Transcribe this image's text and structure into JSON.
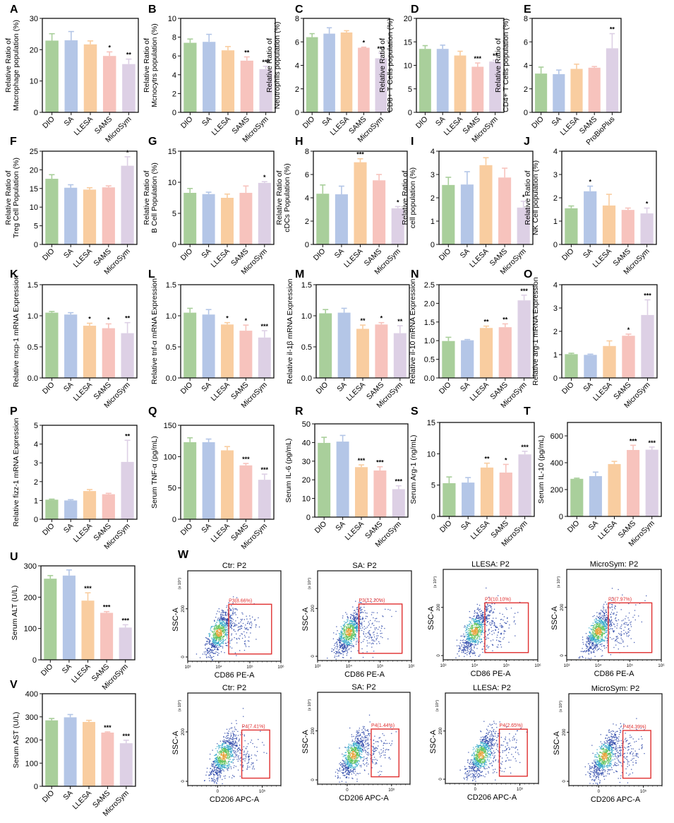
{
  "figure": {
    "colors": {
      "DIO": "#a9cf9b",
      "SA": "#b4c6e7",
      "LLESA": "#f9cda0",
      "SAMS": "#f7c3bd",
      "MicroSym": "#ddd0e5",
      "ProBioPlus": "#ddd0e5",
      "gate": "#e03030"
    }
  },
  "chart_data": [
    {
      "panel": "A",
      "type": "bar",
      "ylabel": [
        "Relative Ratio of",
        "Macrophage population (%)"
      ],
      "ylim": [
        0,
        30
      ],
      "yticks": [
        0,
        10,
        20,
        30
      ],
      "categories": [
        "DIO",
        "SA",
        "LLESA",
        "SAMS",
        "MicroSym"
      ],
      "values": [
        22.9,
        23.0,
        21.7,
        18.0,
        15.4
      ],
      "errors": [
        2.2,
        2.8,
        1.1,
        1.3,
        1.6
      ],
      "significance": [
        "",
        "",
        "",
        "*",
        "**"
      ]
    },
    {
      "panel": "B",
      "type": "bar",
      "ylabel": [
        "Relative Ratio of",
        "Mcnocytrs population (%)"
      ],
      "ylim": [
        0,
        10
      ],
      "yticks": [
        0,
        2,
        4,
        6,
        8,
        10
      ],
      "categories": [
        "DIO",
        "SA",
        "LLESA",
        "SAMS",
        "MicroSym"
      ],
      "values": [
        7.4,
        7.5,
        6.6,
        5.5,
        4.6
      ],
      "errors": [
        0.4,
        0.8,
        0.4,
        0.4,
        0.3
      ],
      "significance": [
        "",
        "",
        "",
        "**",
        "***"
      ]
    },
    {
      "panel": "C",
      "type": "bar",
      "ylabel": [
        "Relative Ratio of",
        "Neutrophils population (%)"
      ],
      "ylim": [
        0,
        8
      ],
      "yticks": [
        0,
        2,
        4,
        6,
        8
      ],
      "categories": [
        "DIO",
        "SA",
        "LLESA",
        "SAMS",
        "MicroSym"
      ],
      "values": [
        6.4,
        6.7,
        6.8,
        5.5,
        4.6
      ],
      "errors": [
        0.3,
        0.5,
        0.15,
        0.05,
        0.45
      ],
      "significance": [
        "",
        "",
        "",
        "*",
        "***"
      ]
    },
    {
      "panel": "D",
      "type": "bar",
      "ylabel": [
        "Relative Ratio of",
        "CD8+ T Cells population (%)"
      ],
      "ylim": [
        0,
        20
      ],
      "yticks": [
        0,
        5,
        10,
        15,
        20
      ],
      "categories": [
        "DIO",
        "SA",
        "LLESA",
        "SAMS",
        "MicroSym"
      ],
      "values": [
        13.5,
        13.5,
        12.1,
        9.7,
        10.8
      ],
      "errors": [
        0.7,
        0.8,
        0.9,
        0.8,
        0.3
      ],
      "significance": [
        "",
        "",
        "",
        "***",
        "**"
      ]
    },
    {
      "panel": "E",
      "type": "bar",
      "ylabel": [
        "Relative Ratio of",
        "CD4+ T Cells population (%)"
      ],
      "ylim": [
        0,
        8
      ],
      "yticks": [
        0,
        2,
        4,
        6,
        8
      ],
      "categories": [
        "DIO",
        "SA",
        "LLESA",
        "SAMS",
        "ProBioPlus"
      ],
      "values": [
        3.3,
        3.25,
        3.7,
        3.8,
        5.45
      ],
      "errors": [
        0.55,
        0.35,
        0.4,
        0.1,
        1.25
      ],
      "significance": [
        "",
        "",
        "",
        "",
        "**"
      ]
    },
    {
      "panel": "F",
      "type": "bar",
      "ylabel": [
        "Relative Ratio of",
        "Treg Cell Population (%)"
      ],
      "ylim": [
        0,
        25
      ],
      "yticks": [
        0,
        5,
        10,
        15,
        20,
        25
      ],
      "categories": [
        "DIO",
        "SA",
        "LLESA",
        "SAMS",
        "MicroSym"
      ],
      "values": [
        17.6,
        15.2,
        14.7,
        15.3,
        21.1
      ],
      "errors": [
        1.1,
        0.8,
        0.5,
        0.4,
        2.4
      ],
      "significance": [
        "",
        "",
        "",
        "",
        "*"
      ]
    },
    {
      "panel": "G",
      "type": "bar",
      "ylabel": [
        "Relative Ratio of",
        "B Cell Population (%)"
      ],
      "ylim": [
        0,
        15
      ],
      "yticks": [
        0,
        5,
        10,
        15
      ],
      "categories": [
        "DIO",
        "SA",
        "LLESA",
        "SAMS",
        "MicroSym"
      ],
      "values": [
        8.3,
        8.1,
        7.5,
        8.3,
        9.9
      ],
      "errors": [
        0.7,
        0.3,
        0.6,
        1.1,
        0.2
      ],
      "significance": [
        "",
        "",
        "",
        "",
        "*"
      ]
    },
    {
      "panel": "H",
      "type": "bar",
      "ylabel": [
        "Relative Ratio of",
        "cDCs Population (%)"
      ],
      "ylim": [
        0,
        8
      ],
      "yticks": [
        0,
        2,
        4,
        6,
        8
      ],
      "categories": [
        "DIO",
        "SA",
        "LLESA",
        "SAMS",
        "MicroSym"
      ],
      "values": [
        4.35,
        4.3,
        7.05,
        5.5,
        3.1
      ],
      "errors": [
        0.75,
        0.7,
        0.3,
        0.5,
        0.15
      ],
      "significance": [
        "",
        "",
        "***",
        "",
        "*"
      ]
    },
    {
      "panel": "I",
      "type": "bar",
      "ylabel": [
        "Relative Ratio of",
        "cell population (%)"
      ],
      "ylim": [
        0,
        4
      ],
      "yticks": [
        0,
        1,
        2,
        3,
        4
      ],
      "categories": [
        "DIO",
        "SA",
        "LLESA",
        "SAMS",
        "MicroSym"
      ],
      "values": [
        2.55,
        2.57,
        3.4,
        2.87,
        1.58
      ],
      "errors": [
        0.33,
        0.55,
        0.32,
        0.4,
        0.27
      ],
      "significance": [
        "",
        "",
        "",
        "",
        "*"
      ]
    },
    {
      "panel": "J",
      "type": "bar",
      "ylabel": [
        "Relative Ratio of",
        "NK Cell population (%)"
      ],
      "ylim": [
        0,
        4
      ],
      "yticks": [
        0,
        1,
        2,
        3,
        4
      ],
      "categories": [
        "DIO",
        "SA",
        "LLESA",
        "SAMS",
        "MicroSym"
      ],
      "values": [
        1.55,
        2.28,
        1.67,
        1.48,
        1.33
      ],
      "errors": [
        0.1,
        0.22,
        0.48,
        0.08,
        0.23
      ],
      "significance": [
        "",
        "*",
        "",
        "",
        "*"
      ]
    },
    {
      "panel": "K",
      "type": "bar",
      "ylabel": [
        "Relative mcp-1 mRNA Expression"
      ],
      "ylim": [
        0,
        1.5
      ],
      "yticks": [
        0.0,
        0.5,
        1.0,
        1.5
      ],
      "tickDecimals": 1,
      "categories": [
        "DIO",
        "SA",
        "LLESA",
        "SAMS",
        "MicroSym"
      ],
      "values": [
        1.05,
        1.02,
        0.84,
        0.8,
        0.72
      ],
      "errors": [
        0.02,
        0.03,
        0.04,
        0.07,
        0.17
      ],
      "significance": [
        "",
        "",
        "*",
        "*",
        "**"
      ]
    },
    {
      "panel": "L",
      "type": "bar",
      "ylabel": [
        "Relative tnf-α mRNA Expression"
      ],
      "ylim": [
        0,
        1.5
      ],
      "yticks": [
        0.0,
        0.5,
        1.0,
        1.5
      ],
      "tickDecimals": 1,
      "categories": [
        "DIO",
        "SA",
        "LLESA",
        "SAMS",
        "MicroSym"
      ],
      "values": [
        1.05,
        1.02,
        0.86,
        0.76,
        0.65
      ],
      "errors": [
        0.07,
        0.08,
        0.03,
        0.09,
        0.11
      ],
      "significance": [
        "",
        "",
        "*",
        "*",
        "***"
      ]
    },
    {
      "panel": "M",
      "type": "bar",
      "ylabel": [
        "Relative il-1β mRNA Expression"
      ],
      "ylim": [
        0,
        1.5
      ],
      "yticks": [
        0.0,
        0.5,
        1.0,
        1.5
      ],
      "tickDecimals": 1,
      "categories": [
        "DIO",
        "SA",
        "LLESA",
        "SAMS",
        "MicroSym"
      ],
      "values": [
        1.04,
        1.05,
        0.79,
        0.86,
        0.72
      ],
      "errors": [
        0.06,
        0.07,
        0.06,
        0.03,
        0.12
      ],
      "significance": [
        "",
        "",
        "**",
        "*",
        "**"
      ]
    },
    {
      "panel": "N",
      "type": "bar",
      "ylabel": [
        "Relative il-10 mRNA Expression"
      ],
      "ylim": [
        0,
        2.5
      ],
      "yticks": [
        0.0,
        0.5,
        1.0,
        1.5,
        2.0,
        2.5
      ],
      "tickDecimals": 1,
      "categories": [
        "DIO",
        "SA",
        "LLESA",
        "SAMS",
        "MicroSym"
      ],
      "values": [
        0.99,
        1.01,
        1.34,
        1.36,
        2.08
      ],
      "errors": [
        0.1,
        0.02,
        0.05,
        0.09,
        0.14
      ],
      "significance": [
        "",
        "",
        "**",
        "**",
        "***"
      ]
    },
    {
      "panel": "O",
      "type": "bar",
      "ylabel": [
        "Relative arg-1 mRNA Expression"
      ],
      "ylim": [
        0,
        4
      ],
      "yticks": [
        0,
        1,
        2,
        3,
        4
      ],
      "categories": [
        "DIO",
        "SA",
        "LLESA",
        "SAMS",
        "MicroSym"
      ],
      "values": [
        1.02,
        0.99,
        1.37,
        1.81,
        2.7
      ],
      "errors": [
        0.04,
        0.03,
        0.22,
        0.07,
        0.65
      ],
      "significance": [
        "",
        "",
        "",
        "*",
        "***"
      ]
    },
    {
      "panel": "P",
      "type": "bar",
      "ylabel": [
        "Relative fizz-1 mRNA Expression"
      ],
      "ylim": [
        0,
        5
      ],
      "yticks": [
        0,
        1,
        2,
        3,
        4,
        5
      ],
      "categories": [
        "DIO",
        "SA",
        "LLESA",
        "SAMS",
        "MicroSym"
      ],
      "values": [
        1.04,
        1.0,
        1.5,
        1.33,
        3.05
      ],
      "errors": [
        0.03,
        0.04,
        0.08,
        0.05,
        1.15
      ],
      "significance": [
        "",
        "",
        "",
        "",
        "**"
      ]
    },
    {
      "panel": "Q",
      "type": "bar",
      "ylabel": [
        "Serum TNF-α (pg/mL)"
      ],
      "ylim": [
        0,
        150
      ],
      "yticks": [
        0,
        50,
        100,
        150
      ],
      "categories": [
        "DIO",
        "SA",
        "LLESA",
        "SAMS",
        "MicroSym"
      ],
      "values": [
        123,
        123,
        110,
        86,
        63
      ],
      "errors": [
        7,
        5,
        6,
        3,
        9
      ],
      "significance": [
        "",
        "",
        "",
        "***",
        "***"
      ]
    },
    {
      "panel": "R",
      "type": "bar",
      "ylabel": [
        "Serum IL-6 (pg/mL)"
      ],
      "ylim": [
        0,
        50
      ],
      "yticks": [
        0,
        10,
        20,
        30,
        40,
        50
      ],
      "categories": [
        "DIO",
        "SA",
        "LLESA",
        "SAMS",
        "MicroSym"
      ],
      "values": [
        39.8,
        40.5,
        26.8,
        25.0,
        15.0
      ],
      "errors": [
        3.0,
        3.3,
        1.2,
        2.0,
        1.8
      ],
      "significance": [
        "",
        "",
        "***",
        "***",
        "***"
      ]
    },
    {
      "panel": "S",
      "type": "bar",
      "ylabel": [
        "Serum Arg-1 (ng/mL)"
      ],
      "ylim": [
        0,
        15
      ],
      "yticks": [
        0,
        5,
        10,
        15
      ],
      "categories": [
        "DIO",
        "SA",
        "LLESA",
        "SAMS",
        "MicroSym"
      ],
      "values": [
        5.3,
        5.4,
        7.8,
        7.0,
        9.9
      ],
      "errors": [
        1.0,
        0.8,
        0.7,
        1.3,
        0.5
      ],
      "significance": [
        "",
        "",
        "**",
        "*",
        "***"
      ]
    },
    {
      "panel": "T",
      "type": "bar",
      "ylabel": [
        "Serum  IL-10 (pg/mL)"
      ],
      "ylim": [
        0,
        700
      ],
      "yticks": [
        0,
        200,
        400,
        600
      ],
      "categories": [
        "DIO",
        "SA",
        "LLESA",
        "SAMS",
        "MicroSym"
      ],
      "values": [
        280,
        300,
        390,
        495,
        497
      ],
      "errors": [
        5,
        30,
        20,
        35,
        20
      ],
      "significance": [
        "",
        "",
        "",
        "***",
        "***"
      ]
    },
    {
      "panel": "U",
      "type": "bar",
      "ylabel": [
        "Serum  ALT (U/L)"
      ],
      "ylim": [
        0,
        300
      ],
      "yticks": [
        0,
        100,
        200,
        300
      ],
      "categories": [
        "DIO",
        "SA",
        "LLESA",
        "SAMS",
        "MicroSym"
      ],
      "values": [
        259,
        269,
        189,
        150,
        103
      ],
      "errors": [
        10,
        18,
        25,
        4,
        9
      ],
      "significance": [
        "",
        "",
        "***",
        "***",
        "***"
      ]
    },
    {
      "panel": "V",
      "type": "bar",
      "ylabel": [
        "Serum AST  (U/L)"
      ],
      "ylim": [
        0,
        400
      ],
      "yticks": [
        0,
        100,
        200,
        300,
        400
      ],
      "categories": [
        "DIO",
        "SA",
        "LLESA",
        "SAMS",
        "MicroSym"
      ],
      "values": [
        285,
        298,
        278,
        232,
        186
      ],
      "errors": [
        8,
        12,
        7,
        3,
        13
      ],
      "significance": [
        "",
        "",
        "",
        "***",
        "***"
      ]
    },
    {
      "panel": "W",
      "type": "scatter",
      "subplots": [
        {
          "title": "Ctr: P2",
          "xlabel": "CD86 PE-A",
          "ylabel": "SSC-A",
          "yscale_note": "(x 10⁴)",
          "xticks": [
            "10³",
            "10⁴",
            "10⁵",
            "10⁶"
          ],
          "yticks": [
            "0",
            "200"
          ],
          "gate": "P3(8.66%)",
          "gate_percent": 8.66
        },
        {
          "title": "SA: P2",
          "xlabel": "CD86 PE-A",
          "ylabel": "SSC-A",
          "yscale_note": "(x 10⁴)",
          "xticks": [
            "10³",
            "10⁴",
            "10⁵",
            "10⁶"
          ],
          "yticks": [
            "0",
            "200"
          ],
          "gate": "P3(12.20%)",
          "gate_percent": 12.2
        },
        {
          "title": "LLESA: P2",
          "xlabel": "CD86 PE-A",
          "ylabel": "SSC-A",
          "yscale_note": "(x 10⁴)",
          "xticks": [
            "10³",
            "10⁴",
            "10⁵",
            "10⁶"
          ],
          "yticks": [
            "0",
            "200"
          ],
          "gate": "P3(10.10%)",
          "gate_percent": 10.1
        },
        {
          "title": "MicroSym: P2",
          "xlabel": "CD86 PE-A",
          "ylabel": "SSC-A",
          "yscale_note": "(x 10⁴)",
          "xticks": [
            "10³",
            "10⁴",
            "10⁵",
            "10⁶"
          ],
          "yticks": [
            "0",
            "200"
          ],
          "gate": "P3(7.97%)",
          "gate_percent": 7.97
        },
        {
          "title": "Ctr: P2",
          "xlabel": "CD206 APC-A",
          "ylabel": "SSC-A",
          "yscale_note": "(x 10⁴)",
          "xticks": [
            "0",
            "10⁵"
          ],
          "yticks": [
            "0",
            "200"
          ],
          "gate": "P4(7.41%)",
          "gate_percent": 7.41
        },
        {
          "title": "SA: P2",
          "xlabel": "CD206 APC-A",
          "ylabel": "SSC-A",
          "yscale_note": "(x 10⁴)",
          "xticks": [
            "0",
            "10⁵"
          ],
          "yticks": [
            "0",
            "200"
          ],
          "gate": "P4(1.44%)",
          "gate_percent": 1.44
        },
        {
          "title": "LLESA: P2",
          "xlabel": "CD206 APC-A",
          "ylabel": "SSC-A",
          "yscale_note": "(x 10⁴)",
          "xticks": [
            "0",
            "10⁵"
          ],
          "yticks": [
            "0",
            "200"
          ],
          "gate": "P4(2.65%)",
          "gate_percent": 2.65
        },
        {
          "title": "MicroSym: P2",
          "xlabel": "CD206 APC-A",
          "ylabel": "SSC-A",
          "yscale_note": "(x 10⁴)",
          "xticks": [
            "0",
            "10⁵"
          ],
          "yticks": [
            "0",
            "200"
          ],
          "gate": "P4(4.39%)",
          "gate_percent": 4.39
        }
      ]
    }
  ]
}
